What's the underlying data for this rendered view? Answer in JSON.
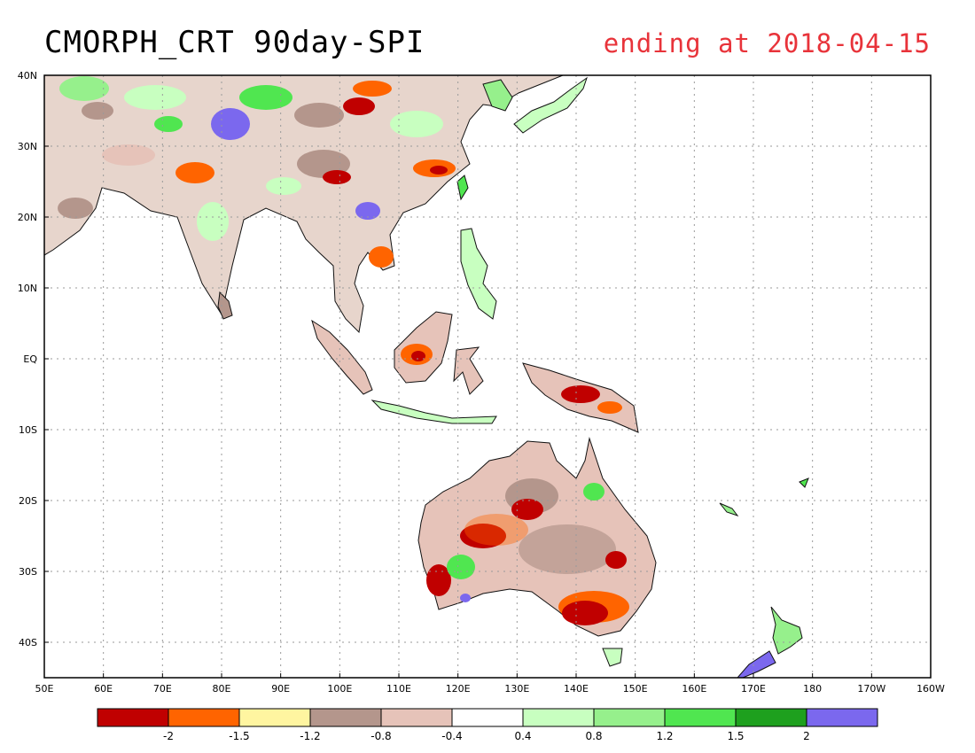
{
  "header": {
    "title": "CMORPH_CRT 90day-SPI",
    "subtitle": "ending at 2018-04-15"
  },
  "map": {
    "lon_range": [
      50,
      200
    ],
    "lat_range": [
      -45,
      40
    ],
    "grid": true,
    "lon_labels": [
      "50E",
      "60E",
      "70E",
      "80E",
      "90E",
      "100E",
      "110E",
      "120E",
      "130E",
      "140E",
      "150E",
      "160E",
      "170E",
      "180",
      "170W",
      "160W"
    ],
    "lat_labels": [
      "40N",
      "30N",
      "20N",
      "10N",
      "EQ",
      "10S",
      "20S",
      "30S",
      "40S"
    ]
  },
  "legend": {
    "colors": [
      "#c00000",
      "#ff6400",
      "#fff5a0",
      "#b4968c",
      "#e6c3b9",
      "#ffffff",
      "#c8ffc0",
      "#96f08c",
      "#50e650",
      "#1ea01e",
      "#7b68ee"
    ],
    "labels": [
      "-2",
      "-1.5",
      "-1.2",
      "-0.8",
      "-0.4",
      "0.4",
      "0.8",
      "1.2",
      "1.5",
      "2"
    ]
  }
}
